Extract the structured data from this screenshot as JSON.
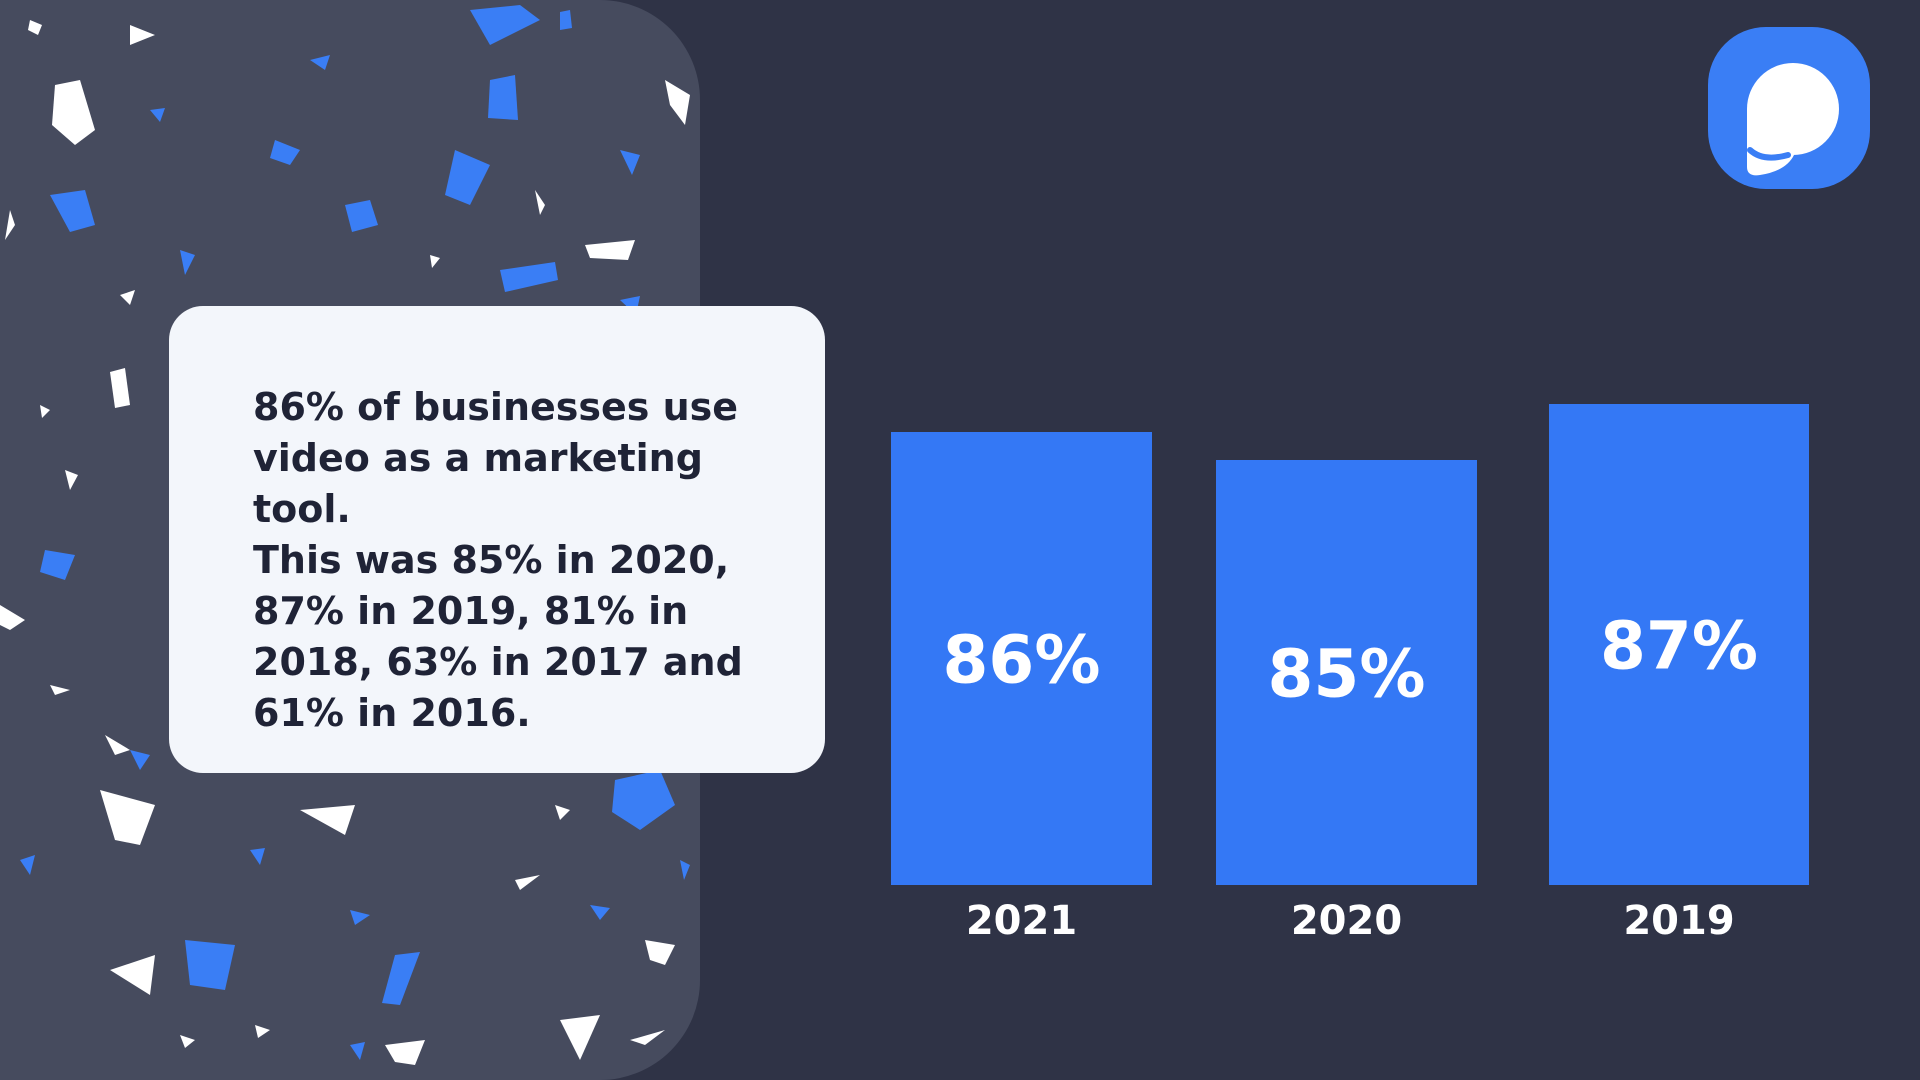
{
  "card": {
    "lines": [
      "86% of businesses use",
      "video as a marketing tool.",
      "This was 85% in 2020,",
      "87% in 2019, 81% in",
      "2018, 63% in 2017 and",
      "61% in 2016."
    ]
  },
  "chart_data": {
    "type": "bar",
    "categories": [
      "2021",
      "2020",
      "2019"
    ],
    "values": [
      86,
      85,
      87
    ],
    "value_labels": [
      "86%",
      "85%",
      "87%"
    ],
    "title": "",
    "xlabel": "",
    "ylabel": ""
  },
  "colors": {
    "background": "#2f3346",
    "panel": "#464b5e",
    "bar": "#3478f5",
    "card": "#f3f6fb",
    "text_dark": "#1f2336"
  },
  "logo": {
    "icon": "p-logo-icon"
  }
}
